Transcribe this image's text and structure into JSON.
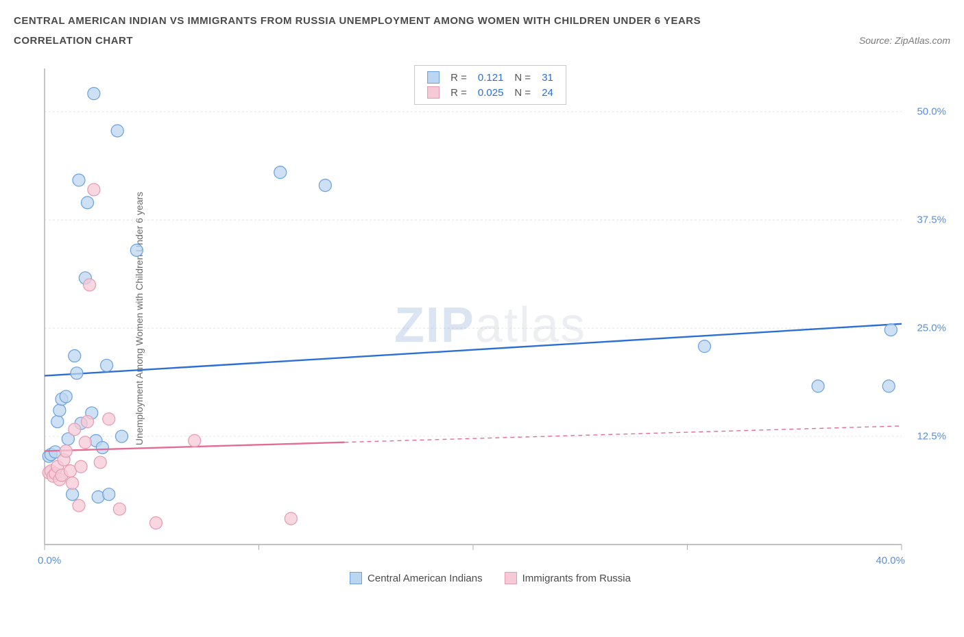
{
  "title": "CENTRAL AMERICAN INDIAN VS IMMIGRANTS FROM RUSSIA UNEMPLOYMENT AMONG WOMEN WITH CHILDREN UNDER 6 YEARS",
  "subtitle": "CORRELATION CHART",
  "source": "Source: ZipAtlas.com",
  "watermark_a": "ZIP",
  "watermark_b": "atlas",
  "y_axis_label": "Unemployment Among Women with Children Under 6 years",
  "chart": {
    "type": "scatter",
    "xlim": [
      0,
      40
    ],
    "ylim": [
      0,
      55
    ],
    "x_ticks": [
      0,
      10,
      20,
      30,
      40
    ],
    "x_tick_labels": [
      "0.0%",
      "",
      "",
      "",
      "40.0%"
    ],
    "y_ticks": [
      12.5,
      25.0,
      37.5,
      50.0
    ],
    "y_tick_labels": [
      "12.5%",
      "25.0%",
      "37.5%",
      "50.0%"
    ],
    "grid_color": "#e4e4e4",
    "axis_color": "#aeaeae",
    "background_color": "#ffffff",
    "marker_radius": 9,
    "marker_stroke_width": 1.2,
    "trend_line_width": 2.4,
    "series": [
      {
        "name": "Central American Indians",
        "fill": "#bcd5f0",
        "stroke": "#6aa0dd",
        "line_color": "#2b6fd6",
        "R": "0.121",
        "N": "31",
        "trend": {
          "x1": 0,
          "y1": 19.5,
          "x2": 40,
          "y2": 25.5,
          "dash_from_x": null
        },
        "points": [
          [
            0.2,
            10.2
          ],
          [
            0.3,
            10.4
          ],
          [
            0.5,
            10.7
          ],
          [
            0.6,
            14.2
          ],
          [
            0.7,
            15.5
          ],
          [
            0.8,
            16.8
          ],
          [
            1.0,
            17.1
          ],
          [
            1.1,
            12.2
          ],
          [
            1.3,
            5.8
          ],
          [
            1.4,
            21.8
          ],
          [
            1.5,
            19.8
          ],
          [
            1.6,
            42.1
          ],
          [
            1.7,
            14.0
          ],
          [
            1.9,
            30.8
          ],
          [
            2.0,
            39.5
          ],
          [
            2.2,
            15.2
          ],
          [
            2.3,
            52.1
          ],
          [
            2.4,
            12.0
          ],
          [
            2.5,
            5.5
          ],
          [
            2.7,
            11.2
          ],
          [
            2.9,
            20.7
          ],
          [
            3.0,
            5.8
          ],
          [
            3.4,
            47.8
          ],
          [
            3.6,
            12.5
          ],
          [
            4.3,
            34.0
          ],
          [
            11.0,
            43.0
          ],
          [
            13.1,
            41.5
          ],
          [
            30.8,
            22.9
          ],
          [
            36.1,
            18.3
          ],
          [
            39.4,
            18.3
          ],
          [
            39.5,
            24.8
          ]
        ]
      },
      {
        "name": "Immigrants from Russia",
        "fill": "#f6c9d6",
        "stroke": "#e59ab2",
        "line_color": "#e46c94",
        "R": "0.025",
        "N": "24",
        "trend": {
          "x1": 0,
          "y1": 10.8,
          "x2": 40,
          "y2": 13.7,
          "dash_from_x": 14
        },
        "points": [
          [
            0.2,
            8.3
          ],
          [
            0.3,
            8.5
          ],
          [
            0.4,
            7.9
          ],
          [
            0.5,
            8.2
          ],
          [
            0.6,
            9.0
          ],
          [
            0.7,
            7.5
          ],
          [
            0.8,
            8.0
          ],
          [
            0.9,
            9.8
          ],
          [
            1.0,
            10.8
          ],
          [
            1.2,
            8.5
          ],
          [
            1.3,
            7.1
          ],
          [
            1.4,
            13.3
          ],
          [
            1.6,
            4.5
          ],
          [
            1.7,
            9.0
          ],
          [
            1.9,
            11.8
          ],
          [
            2.0,
            14.2
          ],
          [
            2.1,
            30.0
          ],
          [
            2.3,
            41.0
          ],
          [
            2.6,
            9.5
          ],
          [
            3.0,
            14.5
          ],
          [
            3.5,
            4.1
          ],
          [
            5.2,
            2.5
          ],
          [
            7.0,
            12.0
          ],
          [
            11.5,
            3.0
          ]
        ]
      }
    ]
  },
  "legend_top_labels": {
    "R": "R =",
    "N": "N ="
  }
}
